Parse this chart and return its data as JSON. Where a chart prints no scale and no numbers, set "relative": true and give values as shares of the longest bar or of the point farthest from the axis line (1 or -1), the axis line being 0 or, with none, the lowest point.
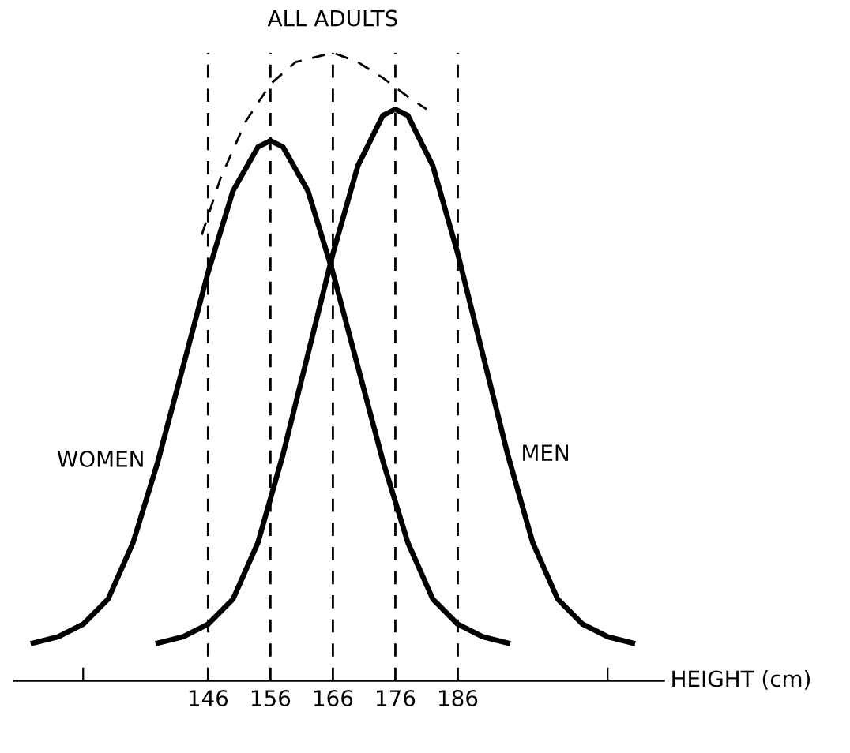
{
  "chart_data": {
    "type": "line",
    "relative": true,
    "xlabel": "HEIGHT (cm)",
    "xlim": [
      115,
      219
    ],
    "xticks": [
      {
        "value": 126,
        "label": null
      },
      146,
      156,
      166,
      176,
      186,
      {
        "value": 210,
        "label": null
      }
    ],
    "series": [
      {
        "name": "WOMEN",
        "color": "#000000",
        "line_style": "solid",
        "x": [
          118,
          122,
          126,
          130,
          134,
          138,
          142,
          146,
          150,
          154,
          156,
          158,
          162,
          166,
          170,
          174,
          178,
          182,
          186,
          190,
          194
        ],
        "values": [
          0.06,
          0.07,
          0.09,
          0.13,
          0.22,
          0.35,
          0.5,
          0.65,
          0.78,
          0.85,
          0.86,
          0.85,
          0.78,
          0.65,
          0.5,
          0.35,
          0.22,
          0.13,
          0.09,
          0.07,
          0.06
        ]
      },
      {
        "name": "MEN",
        "color": "#000000",
        "line_style": "solid",
        "x": [
          138,
          142,
          146,
          150,
          154,
          158,
          162,
          166,
          170,
          174,
          176,
          178,
          182,
          186,
          190,
          194,
          198,
          202,
          206,
          210,
          214
        ],
        "values": [
          0.06,
          0.07,
          0.09,
          0.13,
          0.22,
          0.36,
          0.52,
          0.68,
          0.82,
          0.9,
          0.91,
          0.9,
          0.82,
          0.68,
          0.52,
          0.36,
          0.22,
          0.13,
          0.09,
          0.07,
          0.06
        ]
      },
      {
        "name": "ALL ADULTS",
        "color": "#000000",
        "line_style": "dashed",
        "x": [
          145,
          148,
          152,
          156,
          160,
          166,
          170,
          174,
          178,
          181
        ],
        "values": [
          0.71,
          0.8,
          0.89,
          0.95,
          0.985,
          1.0,
          0.985,
          0.96,
          0.93,
          0.91
        ]
      }
    ],
    "ref_lines": [
      {
        "axis": "x",
        "value": 146,
        "color": "#000000",
        "line_style": "dashed"
      },
      {
        "axis": "x",
        "value": 156,
        "color": "#000000",
        "line_style": "dashed"
      },
      {
        "axis": "x",
        "value": 166,
        "color": "#000000",
        "line_style": "dashed"
      },
      {
        "axis": "x",
        "value": 176,
        "color": "#000000",
        "line_style": "dashed"
      },
      {
        "axis": "x",
        "value": 186,
        "color": "#000000",
        "line_style": "dashed"
      }
    ]
  }
}
